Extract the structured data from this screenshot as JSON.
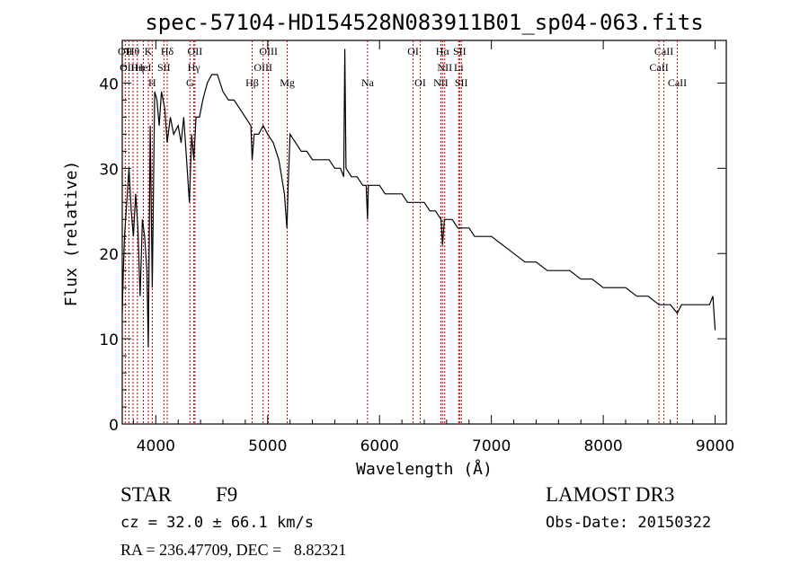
{
  "chart_data": {
    "type": "line",
    "title": "spec-57104-HD154528N083911B01_sp04-063.fits",
    "xlabel": "Wavelength (Å)",
    "ylabel": "Flux (relative)",
    "xlim": [
      3700,
      9100
    ],
    "ylim": [
      0,
      45
    ],
    "x_ticks": [
      4000,
      5000,
      6000,
      7000,
      8000,
      9000
    ],
    "y_ticks": [
      0,
      10,
      20,
      30,
      40
    ],
    "series": [
      {
        "name": "spectrum",
        "x": [
          3700,
          3710,
          3720,
          3740,
          3760,
          3780,
          3800,
          3820,
          3840,
          3860,
          3880,
          3900,
          3920,
          3933,
          3950,
          3968,
          3990,
          4010,
          4030,
          4050,
          4080,
          4102,
          4130,
          4160,
          4200,
          4226,
          4250,
          4280,
          4300,
          4320,
          4340,
          4360,
          4390,
          4420,
          4460,
          4500,
          4550,
          4600,
          4650,
          4700,
          4750,
          4800,
          4850,
          4861,
          4880,
          4920,
          4960,
          5000,
          5050,
          5100,
          5150,
          5172,
          5183,
          5200,
          5250,
          5300,
          5350,
          5400,
          5450,
          5500,
          5550,
          5600,
          5650,
          5680,
          5690,
          5700,
          5750,
          5800,
          5850,
          5880,
          5893,
          5900,
          5950,
          6000,
          6050,
          6100,
          6150,
          6200,
          6250,
          6300,
          6350,
          6400,
          6450,
          6500,
          6550,
          6563,
          6580,
          6600,
          6650,
          6700,
          6750,
          6800,
          6850,
          6900,
          6950,
          7000,
          7100,
          7200,
          7300,
          7400,
          7500,
          7600,
          7700,
          7800,
          7900,
          8000,
          8100,
          8200,
          8300,
          8400,
          8498,
          8542,
          8600,
          8662,
          8700,
          8750,
          8800,
          8850,
          8900,
          8950,
          8980,
          8990,
          9000
        ],
        "y": [
          13,
          18,
          22,
          26,
          30,
          25,
          22,
          27,
          23,
          15,
          24,
          22,
          18,
          9,
          35,
          16,
          39,
          38,
          35,
          39,
          37,
          33,
          36,
          34,
          35,
          33,
          36,
          30,
          26,
          34,
          31,
          36,
          36,
          38,
          40,
          41,
          41,
          39,
          38,
          38,
          37,
          36,
          35,
          31,
          34,
          34,
          35,
          34,
          33,
          31,
          27,
          23,
          28,
          34,
          33,
          32,
          32,
          31,
          31,
          31,
          31,
          30,
          30,
          29,
          44,
          30,
          29,
          29,
          28,
          28,
          24,
          28,
          28,
          28,
          27,
          27,
          27,
          27,
          26,
          26,
          26,
          26,
          25,
          25,
          24,
          21,
          24,
          24,
          24,
          23,
          23,
          23,
          22,
          22,
          22,
          22,
          21,
          20,
          19,
          19,
          18,
          18,
          18,
          17,
          17,
          16,
          16,
          16,
          15,
          15,
          14,
          14,
          14,
          13,
          14,
          14,
          14,
          14,
          14,
          14,
          15,
          13,
          11
        ]
      }
    ],
    "line_markers": [
      {
        "label": "Hθ",
        "wavelength": 3797
      },
      {
        "label": "K",
        "wavelength": 3933
      },
      {
        "label": "Hδ",
        "wavelength": 4102
      },
      {
        "label": "OII",
        "wavelength": 4350
      },
      {
        "label": "OIII",
        "wavelength": 5007
      },
      {
        "label": "OI",
        "wavelength": 6300
      },
      {
        "label": "Hα",
        "wavelength": 6563
      },
      {
        "label": "SII",
        "wavelength": 6716
      },
      {
        "label": "CaII",
        "wavelength": 8542
      },
      {
        "label": "OII",
        "wavelength": 3727
      },
      {
        "label": "HeI",
        "wavelength": 3889
      },
      {
        "label": "SII",
        "wavelength": 4072
      },
      {
        "label": "Hγ",
        "wavelength": 4340
      },
      {
        "label": "OIII",
        "wavelength": 4959
      },
      {
        "label": "NII",
        "wavelength": 6583
      },
      {
        "label": "Li",
        "wavelength": 6708
      },
      {
        "label": "CaII",
        "wavelength": 8498
      },
      {
        "label": "OIII",
        "wavelength": 3760
      },
      {
        "label": "Hη",
        "wavelength": 3835
      },
      {
        "label": "H",
        "wavelength": 3968
      },
      {
        "label": "G",
        "wavelength": 4305
      },
      {
        "label": "Hβ",
        "wavelength": 4861
      },
      {
        "label": "Mg",
        "wavelength": 5175
      },
      {
        "label": "Na",
        "wavelength": 5893
      },
      {
        "label": "OI",
        "wavelength": 6364
      },
      {
        "label": "NII",
        "wavelength": 6548
      },
      {
        "label": "SII",
        "wavelength": 6731
      },
      {
        "label": "CaII",
        "wavelength": 8662
      }
    ]
  },
  "info": {
    "object_class": "STAR",
    "subclass": "F9",
    "survey": "LAMOST DR3",
    "redshift": "cz = 32.0 ± 66.1 km/s",
    "obs_date": "Obs-Date: 20150322",
    "coords": "RA = 236.47709, DEC =   8.82321"
  },
  "colors": {
    "spectrum": "#000000",
    "marker_line": "#cc0000",
    "axis": "#000000"
  }
}
